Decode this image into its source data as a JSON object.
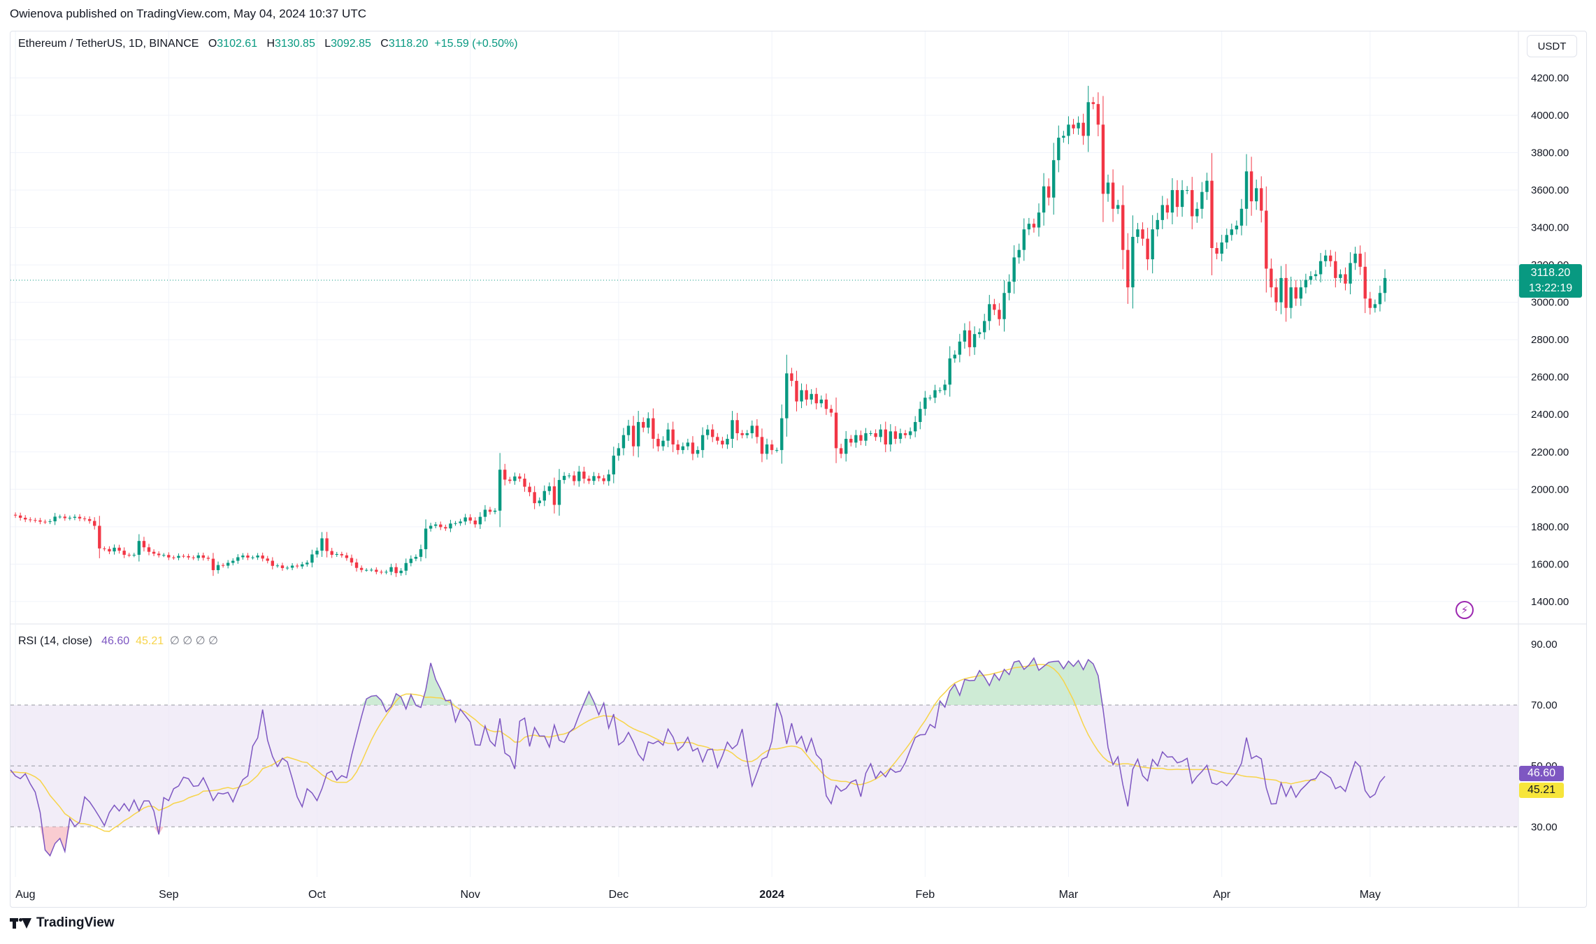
{
  "publisher_line": "Owienova published on TradingView.com, May 04, 2024 10:37 UTC",
  "header": {
    "symbol": "Ethereum / TetherUS, 1D, BINANCE",
    "o_label": "O",
    "o_value": "3102.61",
    "h_label": "H",
    "h_value": "3130.85",
    "l_label": "L",
    "l_value": "3092.85",
    "c_label": "C",
    "c_value": "3118.20",
    "change": "+15.59 (+0.50%)"
  },
  "currency_button": "USDT",
  "last_price": {
    "price": "3118.20",
    "countdown": "13:22:19"
  },
  "rsi_header": {
    "label": "RSI (14, close)",
    "rsi_value": "46.60",
    "ma_value": "45.21",
    "extras": "∅ ∅ ∅ ∅"
  },
  "rsi_tags": {
    "rsi": "46.60",
    "ma": "45.21"
  },
  "footer_brand": "TradingView",
  "colors": {
    "up": "#089981",
    "down": "#f23645",
    "rsi": "#7e57c2",
    "rsi_ma": "#f7d44a",
    "band": "#ede7f6"
  },
  "icons": [
    "lightning-icon",
    "tradingview-logo-icon"
  ],
  "chart_data": [
    {
      "type": "candlestick",
      "title": "Ethereum / TetherUS, 1D, BINANCE",
      "y_ticks": [
        1400,
        1600,
        1800,
        2000,
        2200,
        2400,
        2600,
        2800,
        3000,
        3200,
        3400,
        3600,
        3800,
        4000,
        4200
      ],
      "y_tick_labels": [
        "1400.00",
        "1600.00",
        "1800.00",
        "2000.00",
        "2200.00",
        "2400.00",
        "2600.00",
        "2800.00",
        "3000.00",
        "3200.00",
        "3400.00",
        "3600.00",
        "3800.00",
        "4000.00",
        "4200.00"
      ],
      "ylim": [
        1310,
        4310
      ],
      "x_tick_labels": [
        "Aug",
        "Sep",
        "Oct",
        "Nov",
        "Dec",
        "2024",
        "Feb",
        "Mar",
        "Apr",
        "May"
      ],
      "x_tick_dates": [
        "2023-08-01",
        "2023-09-01",
        "2023-10-01",
        "2023-11-01",
        "2023-12-01",
        "2024-01-01",
        "2024-02-01",
        "2024-03-01",
        "2024-04-01",
        "2024-05-01"
      ],
      "x_range": [
        "2023-07-31",
        "2024-05-31"
      ],
      "series": [
        {
          "close": [
            1860,
            1848,
            1839,
            1836,
            1834,
            1827,
            1826,
            1829,
            1854,
            1854,
            1846,
            1848,
            1853,
            1844,
            1841,
            1831,
            1805,
            1684,
            1681,
            1668,
            1688,
            1672,
            1650,
            1648,
            1650,
            1724,
            1690,
            1666,
            1656,
            1648,
            1649,
            1636,
            1634,
            1644,
            1643,
            1636,
            1633,
            1647,
            1634,
            1629,
            1568,
            1595,
            1592,
            1607,
            1618,
            1637,
            1646,
            1635,
            1636,
            1646,
            1630,
            1618,
            1591,
            1593,
            1579,
            1581,
            1592,
            1588,
            1599,
            1608,
            1652,
            1672,
            1738,
            1670,
            1650,
            1654,
            1647,
            1633,
            1609,
            1580,
            1569,
            1569,
            1570,
            1559,
            1556,
            1559,
            1584,
            1552,
            1565,
            1606,
            1629,
            1639,
            1680,
            1790,
            1805,
            1812,
            1798,
            1791,
            1817,
            1819,
            1828,
            1850,
            1833,
            1813,
            1853,
            1891,
            1880,
            1886,
            2105,
            2052,
            2045,
            2069,
            2057,
            2014,
            1985,
            1926,
            1940,
            1991,
            2016,
            1917,
            2050,
            2072,
            2074,
            2044,
            2095,
            2057,
            2045,
            2071,
            2059,
            2044,
            2080,
            2180,
            2220,
            2290,
            2340,
            2230,
            2360,
            2330,
            2380,
            2270,
            2230,
            2260,
            2320,
            2240,
            2210,
            2230,
            2250,
            2190,
            2210,
            2290,
            2320,
            2280,
            2260,
            2240,
            2270,
            2370,
            2300,
            2290,
            2300,
            2340,
            2280,
            2190,
            2240,
            2210,
            2210,
            2380,
            2620,
            2580,
            2470,
            2530,
            2480,
            2510,
            2460,
            2480,
            2430,
            2410,
            2220,
            2190,
            2270,
            2250,
            2290,
            2260,
            2300,
            2300,
            2280,
            2320,
            2240,
            2310,
            2270,
            2300,
            2290,
            2310,
            2360,
            2430,
            2490,
            2490,
            2530,
            2530,
            2560,
            2700,
            2720,
            2790,
            2850,
            2760,
            2830,
            2840,
            2900,
            2990,
            2960,
            2910,
            3050,
            3110,
            3240,
            3280,
            3390,
            3420,
            3400,
            3480,
            3620,
            3560,
            3760,
            3880,
            3890,
            3950,
            3930,
            3960,
            3890,
            4070,
            4060,
            3950,
            3580,
            3640,
            3500,
            3520,
            3280,
            3080,
            3350,
            3390,
            3340,
            3230,
            3390,
            3440,
            3520,
            3480,
            3600,
            3510,
            3600,
            3600,
            3460,
            3500,
            3590,
            3650,
            3290,
            3260,
            3320,
            3360,
            3390,
            3410,
            3500,
            3700,
            3540,
            3610,
            3490,
            3180,
            3080,
            3000,
            3130,
            2970,
            3080,
            3020,
            3080,
            3120,
            3140,
            3150,
            3220,
            3250,
            3220,
            3130,
            3150,
            3100,
            3210,
            3260,
            3190,
            3020,
            2970,
            2990,
            3050,
            3130
          ]
        }
      ],
      "last_price": 3118.2
    },
    {
      "type": "line",
      "title": "RSI (14, close)",
      "y_ticks": [
        30,
        50,
        70,
        90
      ],
      "y_tick_labels": [
        "30.00",
        "50.00",
        "70.00",
        "90.00"
      ],
      "ylim": [
        14,
        95
      ],
      "band": [
        30,
        70
      ],
      "midline": 50,
      "x_range": [
        "2023-07-31",
        "2024-05-31"
      ],
      "series": [
        {
          "values": [
            48.1,
            47.2,
            45.5,
            50.8,
            48.4,
            45.9,
            43.4,
            47.9,
            50.2,
            48.8,
            48.7,
            46.7,
            45.8,
            47.4,
            44.1,
            41.4,
            34.7,
            22.4,
            20.5,
            24.5,
            26.2,
            21.9,
            32.7,
            30.1,
            31.6,
            39.8,
            38.2,
            35.8,
            33.2,
            30.4,
            34.7,
            37.1,
            35.2,
            37.6,
            35.2,
            38.8,
            35.2,
            38.5,
            38.5,
            35.2,
            27.5,
            39.6,
            38.6,
            42.5,
            43.4,
            46.3,
            45.8,
            43.3,
            43.5,
            46.1,
            42.6,
            38.6,
            41.1,
            40.8,
            41.3,
            38.2,
            42.2,
            45.5,
            46.7,
            56.5,
            59.2,
            68.5,
            58.4,
            53.1,
            49.8,
            52.5,
            51.3,
            45.8,
            39.8,
            36.6,
            42.5,
            41.1,
            38.6,
            42.5,
            47.5,
            48.3,
            45.3,
            46.8,
            46.1,
            53.5,
            59.9,
            66.2,
            72.0,
            72.9,
            73.1,
            71.5,
            67.8,
            69.5,
            73.7,
            72.6,
            68.7,
            73.4,
            69.9,
            69.2,
            75.0,
            83.8,
            78.4,
            75.2,
            71.4,
            71.6,
            64.5,
            68.6,
            66.5,
            64.4,
            56.9,
            56.8,
            63.1,
            58.2,
            56.5,
            65.6,
            54.2,
            53.1,
            49.0,
            64.7,
            65.7,
            56.4,
            62.6,
            59.8,
            59.8,
            56.2,
            63.4,
            58.4,
            57.7,
            61.0,
            62.4,
            66.7,
            70.6,
            74.4,
            71.1,
            66.8,
            70.6,
            62.4,
            67.0,
            56.9,
            58.1,
            61.0,
            57.8,
            53.8,
            51.8,
            57.9,
            57.3,
            58.2,
            56.8,
            62.1,
            59.5,
            55.1,
            56.6,
            59.4,
            54.9,
            55.8,
            51.3,
            55.3,
            55.5,
            49.5,
            53.3,
            57.8,
            55.6,
            57.0,
            62.1,
            52.0,
            43.4,
            47.7,
            52.2,
            52.9,
            58.1,
            70.7,
            66.1,
            57.2,
            64.0,
            57.3,
            59.7,
            54.7,
            59.0,
            53.7,
            52.0,
            40.2,
            37.6,
            43.5,
            41.7,
            42.6,
            44.7,
            45.4,
            39.9,
            47.6,
            50.7,
            45.9,
            48.2,
            46.4,
            49.1,
            47.9,
            48.3,
            51.1,
            55.3,
            59.3,
            60.2,
            60.3,
            63.6,
            62.5,
            71.3,
            69.3,
            74.6,
            76.8,
            73.2,
            78.4,
            78.0,
            78.1,
            81.3,
            79.2,
            76.4,
            80.2,
            78.1,
            81.7,
            80.0,
            84.1,
            84.5,
            81.7,
            83.1,
            85.4,
            81.4,
            82.7,
            84.0,
            84.3,
            84.4,
            81.9,
            84.4,
            82.7,
            84.6,
            81.6,
            84.9,
            83.5,
            79.6,
            68.5,
            56.0,
            50.4,
            53.0,
            43.8,
            36.7,
            48.9,
            52.2,
            46.8,
            45.1,
            52.1,
            50.0,
            54.6,
            52.9,
            53.0,
            51.0,
            51.5,
            52.5,
            44.3,
            46.5,
            48.2,
            50.2,
            44.4,
            43.9,
            45.0,
            43.5,
            45.6,
            47.7,
            50.9,
            59.3,
            52.4,
            53.3,
            52.3,
            42.8,
            37.5,
            37.6,
            44.4,
            40.0,
            43.4,
            39.7,
            42.1,
            43.7,
            45.4,
            45.8,
            48.2,
            47.2,
            46.1,
            42.5,
            43.3,
            41.6,
            46.7,
            51.4,
            49.7,
            41.9,
            39.6,
            40.7,
            44.7,
            46.6
          ]
        },
        {
          "values": [
            51.2,
            50.9,
            50.3,
            50.3,
            50.1,
            49.3,
            48.0,
            47.7,
            47.7,
            47.7,
            48.0,
            48.0,
            47.8,
            47.8,
            47.2,
            46.4,
            45.2,
            42.9,
            40.3,
            38.4,
            36.5,
            34.3,
            33.2,
            32.0,
            31.1,
            31.0,
            30.6,
            30.1,
            29.4,
            28.6,
            28.5,
            29.7,
            30.7,
            32.0,
            32.9,
            34.1,
            35.1,
            36.2,
            36.8,
            36.6,
            35.4,
            36.0,
            36.7,
            37.7,
            38.1,
            38.6,
            39.5,
            40.1,
            40.6,
            41.7,
            41.8,
            41.9,
            42.1,
            42.6,
            42.9,
            42.5,
            42.9,
            43.5,
            44.1,
            45.4,
            46.9,
            49.1,
            49.7,
            50.4,
            51.4,
            52.3,
            52.9,
            52.4,
            51.9,
            51.3,
            51.1,
            49.6,
            48.5,
            47.1,
            46.1,
            45.1,
            44.6,
            44.6,
            44.6,
            45.7,
            48.0,
            51.2,
            54.9,
            58.5,
            61.6,
            64.3,
            66.7,
            69.0,
            71.3,
            73.0,
            73.6,
            73.6,
            73.4,
            73.1,
            72.5,
            72.6,
            72.4,
            72.3,
            71.7,
            70.7,
            69.5,
            68.4,
            67.7,
            66.4,
            65.2,
            63.7,
            62.5,
            61.6,
            61.2,
            61.4,
            60.3,
            59.2,
            57.8,
            57.9,
            59.4,
            59.9,
            60.1,
            59.7,
            59.6,
            59.5,
            59.8,
            60.2,
            60.5,
            61.1,
            61.9,
            63.0,
            64.0,
            64.9,
            65.6,
            66.1,
            66.5,
            66.3,
            66.3,
            65.2,
            64.3,
            63.1,
            62.2,
            61.5,
            60.9,
            60.2,
            59.4,
            58.6,
            57.9,
            57.4,
            57.3,
            57.6,
            57.7,
            57.7,
            57.5,
            56.8,
            56.5,
            56.1,
            55.3,
            55.2,
            55.4,
            55.1,
            54.2,
            52.8,
            51.8,
            51.4,
            51.5,
            52.4,
            53.9,
            54.9,
            55.6,
            55.6,
            55.9,
            56.3,
            56.5,
            56.3,
            55.6,
            53.7,
            51.6,
            49.8,
            48.0,
            46.4,
            45.4,
            45.2,
            44.9,
            44.9,
            44.4,
            43.9,
            43.9,
            44.3,
            44.9,
            45.7,
            46.7,
            47.8,
            49.4,
            51.3,
            53.4,
            55.4,
            57.6,
            60.1,
            62.6,
            64.9,
            67.6,
            70.3,
            72.5,
            74.1,
            75.9,
            77.2,
            78.0,
            78.6,
            79.0,
            79.3,
            79.6,
            79.8,
            80.0,
            80.4,
            80.8,
            81.3,
            81.7,
            82.2,
            82.4,
            82.6,
            82.8,
            83.1,
            83.3,
            83.3,
            82.9,
            81.9,
            80.3,
            77.9,
            74.8,
            71.6,
            67.6,
            63.6,
            60.2,
            57.4,
            54.9,
            52.9,
            51.5,
            50.8,
            50.5,
            50.7,
            50.7,
            50.4,
            49.9,
            49.6,
            49.4,
            49.2,
            49.2,
            49.2,
            48.8,
            48.8,
            48.9,
            48.8,
            48.9,
            48.8,
            48.8,
            48.8,
            48.9,
            48.8,
            48.4,
            47.9,
            47.6,
            47.4,
            47.3,
            46.8,
            46.5,
            46.4,
            46.3,
            45.9,
            45.6,
            45.5,
            45.3,
            44.5,
            44.5,
            44.1,
            44.5,
            44.8,
            45.2,
            45.3,
            45.2
          ]
        }
      ]
    }
  ]
}
